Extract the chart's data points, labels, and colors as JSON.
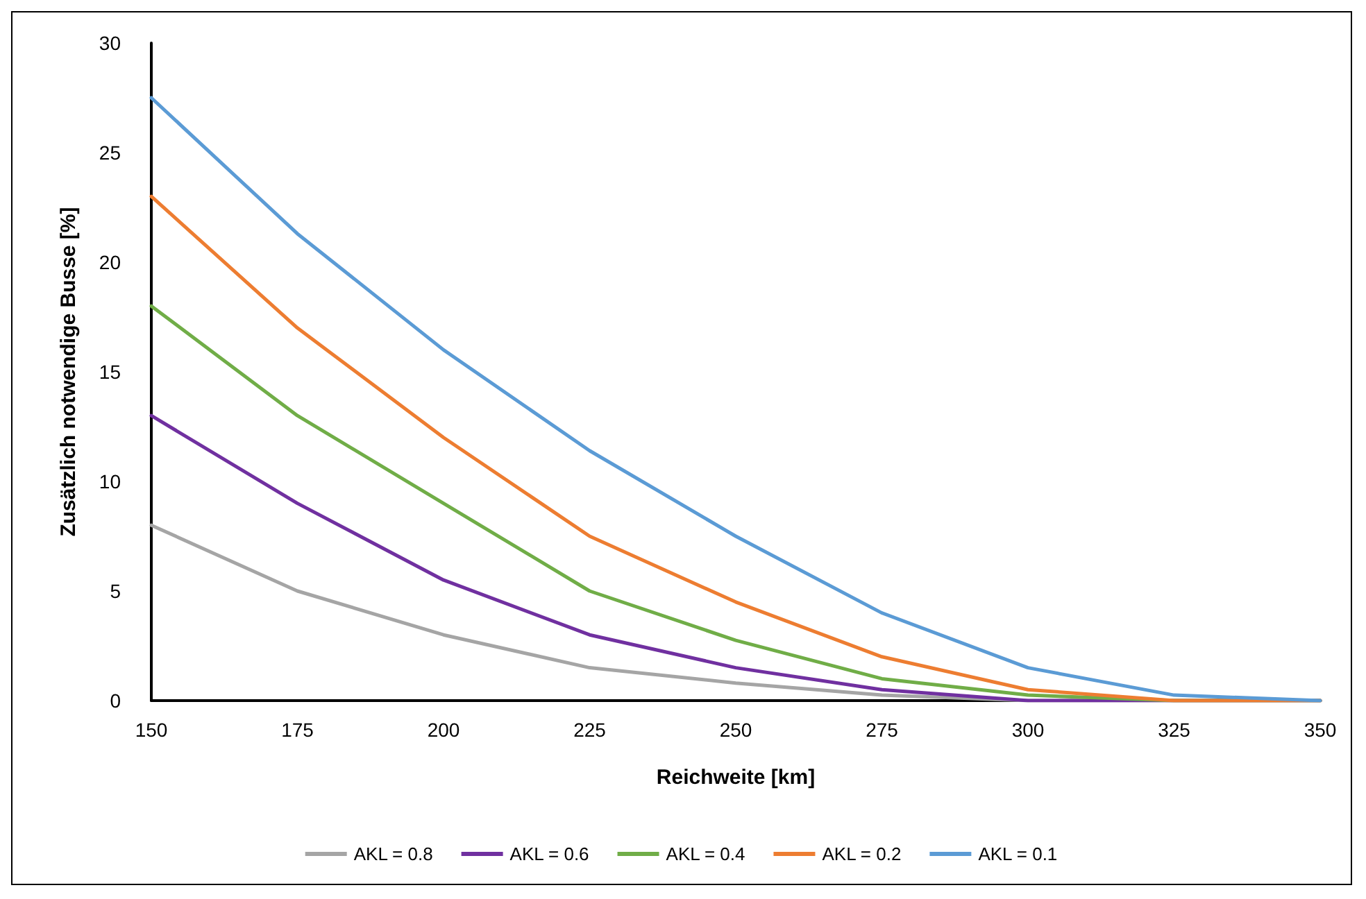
{
  "chart_data": {
    "type": "line",
    "xlabel": "Reichweite [km]",
    "ylabel": "Zusätzlich notwendige Busse [%]",
    "x": [
      150,
      175,
      200,
      225,
      250,
      275,
      300,
      325,
      350
    ],
    "series": [
      {
        "name": "AKL = 0.8",
        "color": "#a5a5a5",
        "values": [
          8,
          5,
          3,
          1.5,
          0.8,
          0.25,
          0,
          0,
          0
        ]
      },
      {
        "name": "AKL = 0.6",
        "color": "#7030a0",
        "values": [
          13,
          9,
          5.5,
          3,
          1.5,
          0.5,
          0,
          0,
          0
        ]
      },
      {
        "name": "AKL = 0.4",
        "color": "#70ad47",
        "values": [
          18,
          13,
          9,
          5,
          2.75,
          1,
          0.25,
          0,
          0
        ]
      },
      {
        "name": "AKL = 0.2",
        "color": "#ed7d31",
        "values": [
          23,
          17,
          12,
          7.5,
          4.5,
          2,
          0.5,
          0,
          0
        ]
      },
      {
        "name": "AKL = 0.1",
        "color": "#5b9bd5",
        "values": [
          27.5,
          21.3,
          16,
          11.4,
          7.5,
          4,
          1.5,
          0.25,
          0
        ]
      }
    ],
    "xlim": [
      150,
      350
    ],
    "xticks": [
      150,
      175,
      200,
      225,
      250,
      275,
      300,
      325,
      350
    ],
    "ylim": [
      0,
      30
    ],
    "yticks": [
      0,
      5,
      10,
      15,
      20,
      25,
      30
    ],
    "grid": false,
    "legend": "bottom",
    "marker": "none",
    "line_style": "solid"
  }
}
